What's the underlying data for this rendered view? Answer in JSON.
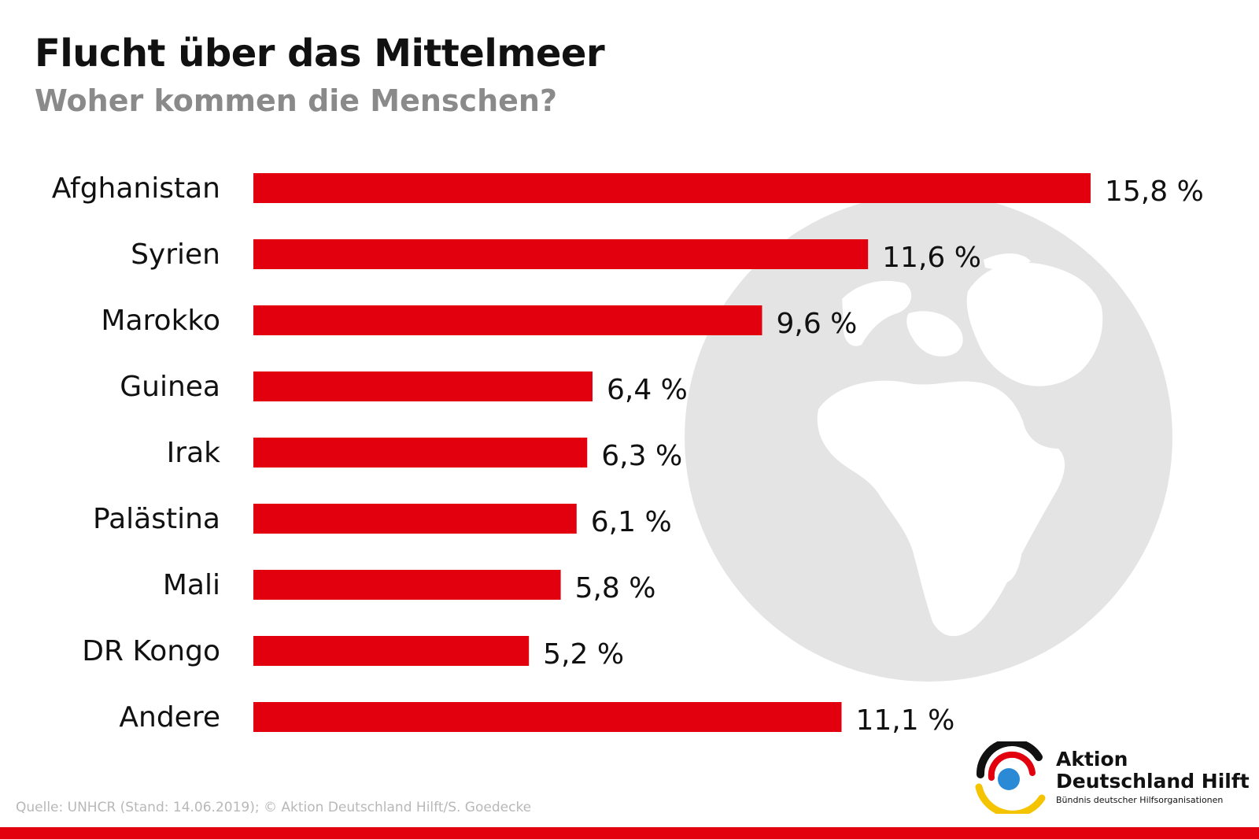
{
  "colors": {
    "bar": "#e2000f",
    "globe": "#e4e4e4",
    "accent_bar": "#e2000f"
  },
  "chart_data": {
    "type": "bar",
    "orientation": "horizontal",
    "title": "Flucht über das Mittelmeer",
    "subtitle": "Woher kommen die Menschen?",
    "categories": [
      "Afghanistan",
      "Syrien",
      "Marokko",
      "Guinea",
      "Irak",
      "Palästina",
      "Mali",
      "DR Kongo",
      "Andere"
    ],
    "values": [
      15.8,
      11.6,
      9.6,
      6.4,
      6.3,
      6.1,
      5.8,
      5.2,
      11.1
    ],
    "labels": [
      "15,8 %",
      "11,6 %",
      "9,6 %",
      "6,4 %",
      "6,3 %",
      "6,1 %",
      "5,8 %",
      "5,2 %",
      "11,1 %"
    ],
    "xlabel": "",
    "ylabel": "",
    "xlim": [
      0,
      15.8
    ],
    "grid": false
  },
  "source": "Quelle: UNHCR (Stand: 14.06.2019); © Aktion Deutschland Hilft/S. Goedecke",
  "logo": {
    "line1": "Aktion",
    "line2": "Deutschland Hilft",
    "tagline": "Bündnis deutscher Hilfsorganisationen",
    "icon": "aktion-deutschland-hilft-logo-icon"
  }
}
